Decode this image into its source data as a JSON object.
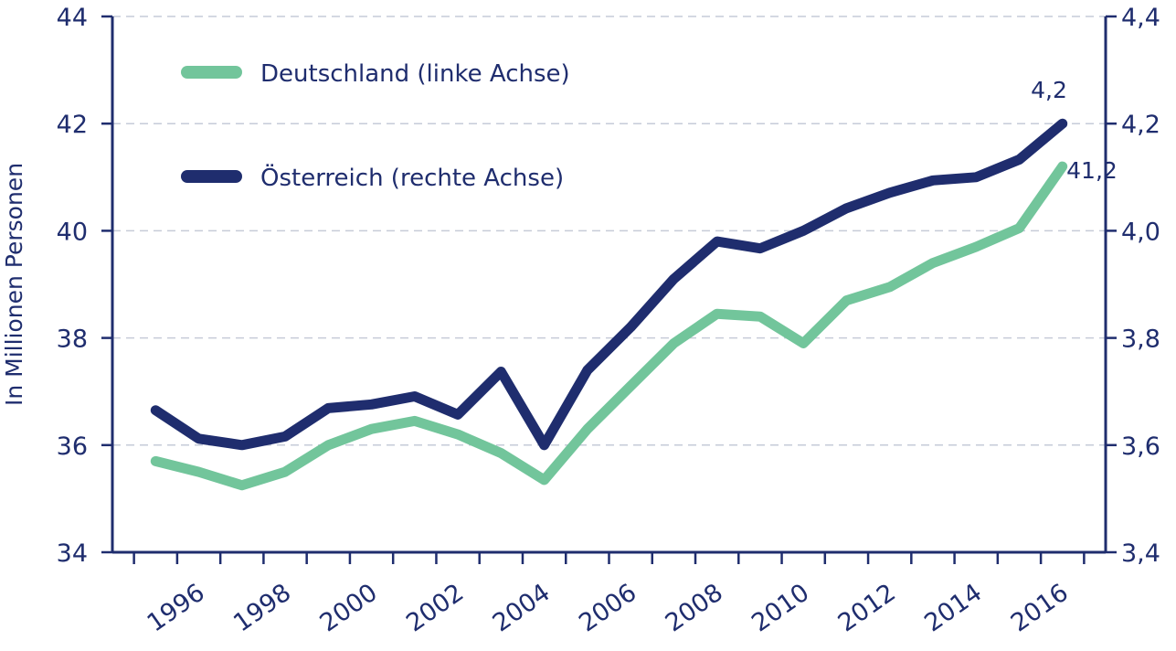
{
  "colors": {
    "axis": "#1f2d6e",
    "grid": "#c6cbd8",
    "deutschland": "#72c59b",
    "oesterreich": "#1f2d6e",
    "text": "#1f2d6e"
  },
  "chart_data": {
    "type": "line",
    "title": "",
    "ylabel_left": "In Millionen Personen",
    "ylabel_right": "",
    "xlabel": "",
    "ylim_left": [
      34,
      44
    ],
    "ylim_right": [
      3.4,
      4.4
    ],
    "y_ticks_left": [
      "34",
      "36",
      "38",
      "40",
      "42",
      "44"
    ],
    "y_ticks_right": [
      "3,4",
      "3,6",
      "3,8",
      "4,0",
      "4,2",
      "4,4"
    ],
    "x_tick_labels": [
      "1996",
      "1998",
      "2000",
      "2002",
      "2004",
      "2006",
      "2008",
      "2010",
      "2012",
      "2014",
      "2016"
    ],
    "x": [
      1995,
      1996,
      1997,
      1998,
      1999,
      2000,
      2001,
      2002,
      2003,
      2004,
      2005,
      2006,
      2007,
      2008,
      2009,
      2010,
      2011,
      2012,
      2013,
      2014,
      2015,
      2016
    ],
    "grid": true,
    "legend_position": "top-left",
    "series": [
      {
        "name": "Deutschland (linke Achse)",
        "axis": "left",
        "values": [
          35.7,
          35.5,
          35.25,
          35.5,
          36.0,
          36.3,
          36.45,
          36.2,
          35.85,
          35.35,
          36.3,
          37.1,
          37.9,
          38.45,
          38.4,
          37.9,
          38.7,
          38.95,
          39.4,
          39.7,
          40.05,
          41.2
        ],
        "end_label": "41,2"
      },
      {
        "name": "Österreich (rechte Achse)",
        "axis": "right",
        "values": [
          3.665,
          3.612,
          3.6,
          3.616,
          3.669,
          3.676,
          3.691,
          3.657,
          3.737,
          3.6,
          3.74,
          3.82,
          3.91,
          3.98,
          3.967,
          4.0,
          4.042,
          4.071,
          4.094,
          4.1,
          4.133,
          4.2
        ],
        "end_label": "4,2"
      }
    ]
  }
}
